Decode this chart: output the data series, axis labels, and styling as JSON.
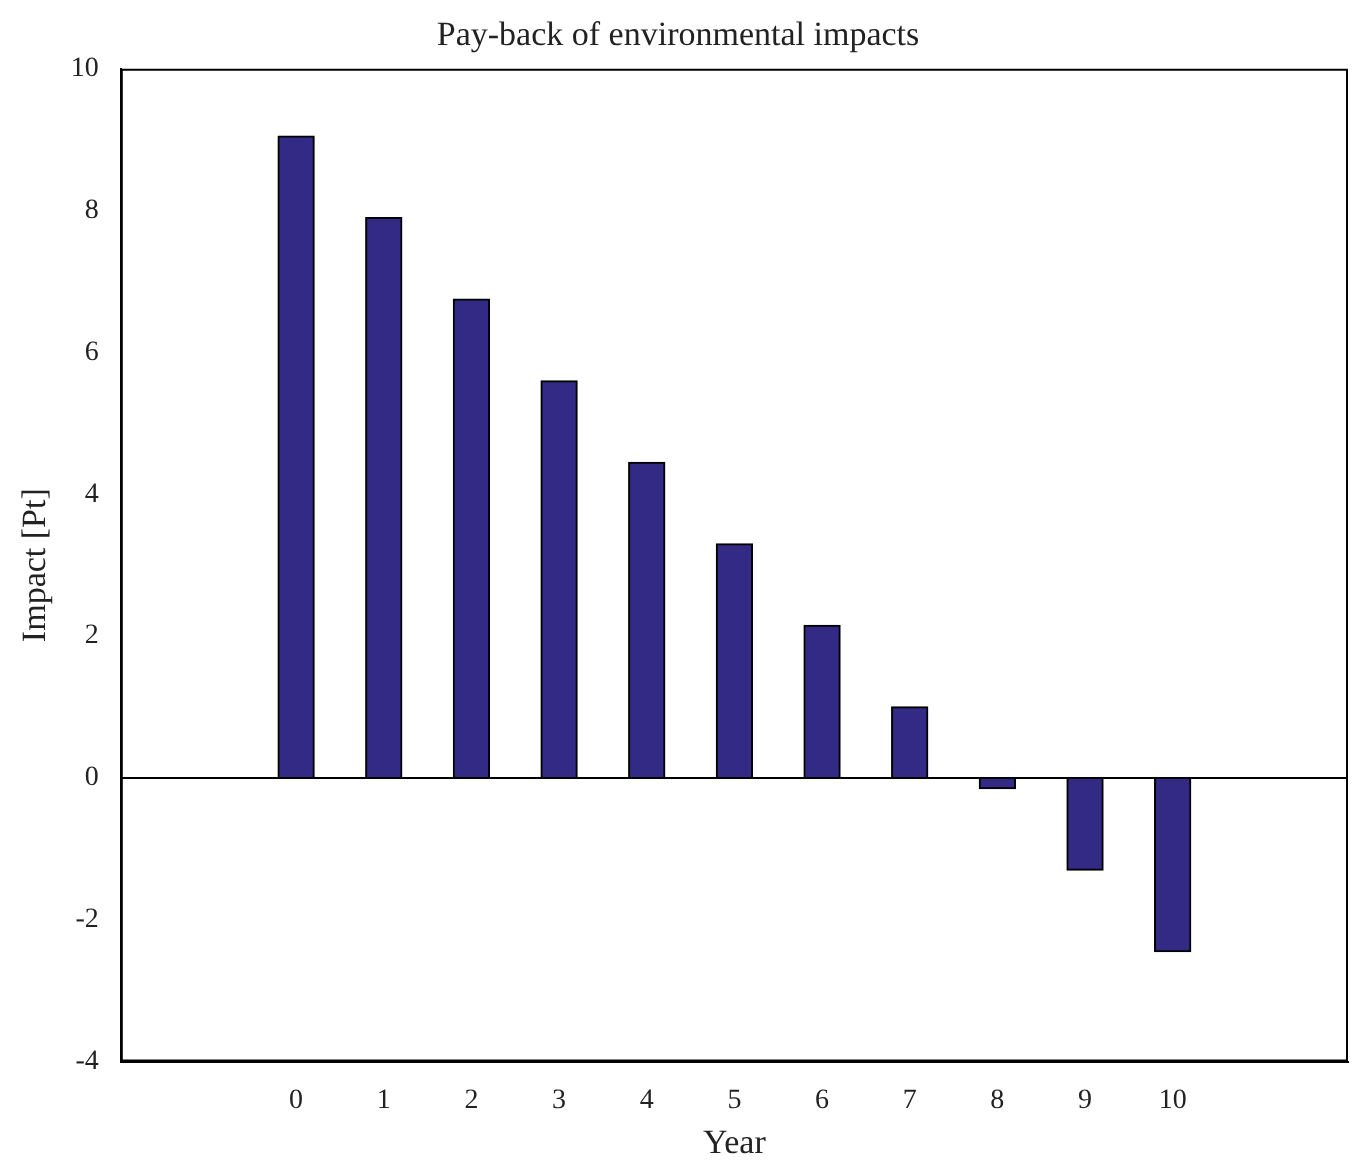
{
  "chart_data": {
    "type": "bar",
    "title": "Pay-back of environmental impacts",
    "xlabel": "Year",
    "ylabel": "Impact [Pt]",
    "x": [
      0,
      1,
      2,
      3,
      4,
      5,
      6,
      7,
      8,
      9,
      10
    ],
    "values": [
      9.05,
      7.9,
      6.75,
      5.6,
      4.45,
      3.3,
      2.15,
      1.0,
      -0.15,
      -1.3,
      -2.45
    ],
    "color": "#332a85",
    "xlim": [
      -2,
      12
    ],
    "xticks": [
      0,
      1,
      2,
      3,
      4,
      5,
      6,
      7,
      8,
      9,
      10
    ],
    "ylim": [
      -4,
      10
    ],
    "yticks": [
      -4,
      -2,
      0,
      2,
      4,
      6,
      8,
      10
    ],
    "ref_lines": [
      {
        "axis": "y",
        "value": 0
      }
    ],
    "grid": false,
    "legend": false
  }
}
